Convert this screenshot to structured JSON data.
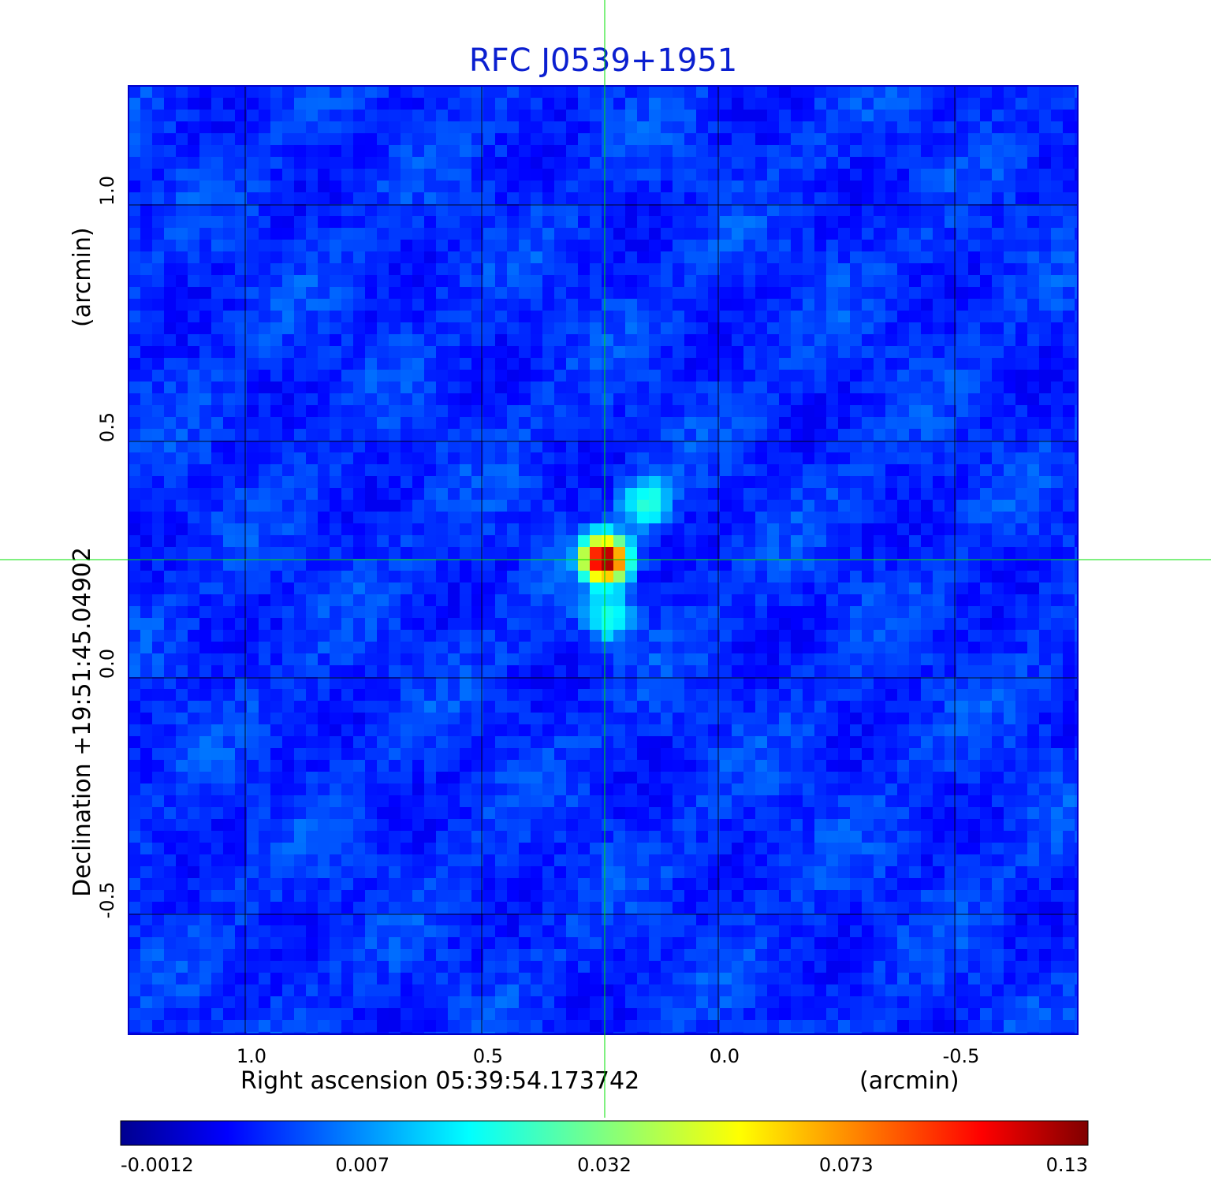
{
  "chart_data": {
    "type": "heatmap",
    "title": "RFC J0539+1951",
    "xlabel": "Right ascension  05:39:54.173742",
    "xunit": "(arcmin)",
    "ylabel": "Declination  +19:51:45.04902",
    "yunit": "(arcmin)",
    "x_axis": {
      "range": [
        1.25,
        -0.76
      ],
      "ticks": [
        1.0,
        0.5,
        0.0,
        -0.5
      ],
      "tick_labels": [
        "1.0",
        "0.5",
        "0.0",
        "-0.5"
      ]
    },
    "y_axis": {
      "range": [
        -0.75,
        1.25
      ],
      "ticks": [
        1.0,
        0.5,
        0.0,
        -0.5
      ],
      "tick_labels": [
        "1.0",
        "0.5",
        "0.0",
        "-0.5"
      ]
    },
    "grid": true,
    "crosshair": {
      "x": 0.24,
      "y": 0.25,
      "color": "#00e000"
    },
    "sources": [
      {
        "x": 0.24,
        "y": 0.25,
        "peak": 0.13
      },
      {
        "x": 0.15,
        "y": 0.37,
        "peak": 0.016
      },
      {
        "x": 0.23,
        "y": 0.13,
        "peak": 0.014
      }
    ],
    "colorbar": {
      "colormap": "jet",
      "tick_values": [
        -0.0012,
        0.007,
        0.032,
        0.073,
        0.13
      ],
      "tick_labels": [
        "-0.0012",
        "0.007",
        "0.032",
        "0.073",
        "0.13"
      ]
    },
    "background_level": 0.001,
    "title_color": "#0b1fd0"
  }
}
